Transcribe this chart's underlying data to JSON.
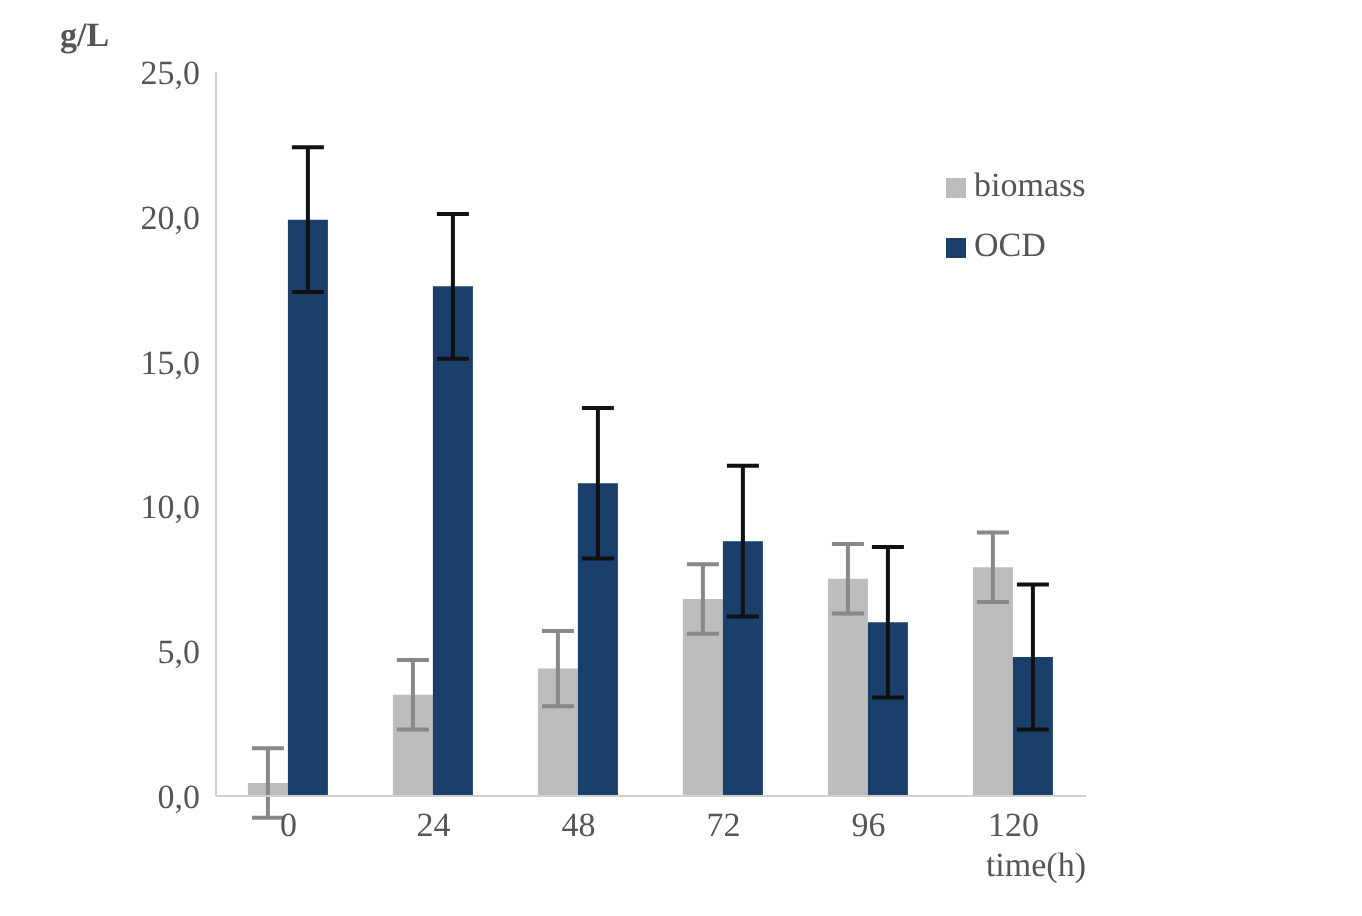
{
  "chart_data": {
    "type": "bar",
    "ylabel": "g/L",
    "xlabel": "time(h)",
    "categories": [
      "0",
      "24",
      "48",
      "72",
      "96",
      "120"
    ],
    "series": [
      {
        "name": "biomass",
        "color": "#bdbdbd",
        "values": [
          0.45,
          3.5,
          4.4,
          6.8,
          7.5,
          7.9
        ],
        "errors": [
          1.2,
          1.2,
          1.3,
          1.2,
          1.2,
          1.2
        ]
      },
      {
        "name": "OCD",
        "color": "#1a3f6b",
        "values": [
          19.9,
          17.6,
          10.8,
          8.8,
          6.0,
          4.8
        ],
        "errors": [
          2.5,
          2.5,
          2.6,
          2.6,
          2.6,
          2.5
        ]
      }
    ],
    "ylim": [
      0,
      25
    ],
    "yticks": [
      {
        "value": 0,
        "label": "0,0"
      },
      {
        "value": 5,
        "label": "5,0"
      },
      {
        "value": 10,
        "label": "10,0"
      },
      {
        "value": 15,
        "label": "15,0"
      },
      {
        "value": 20,
        "label": "20,0"
      },
      {
        "value": 25,
        "label": "25,0"
      }
    ],
    "grid": false,
    "legend": "top right"
  }
}
